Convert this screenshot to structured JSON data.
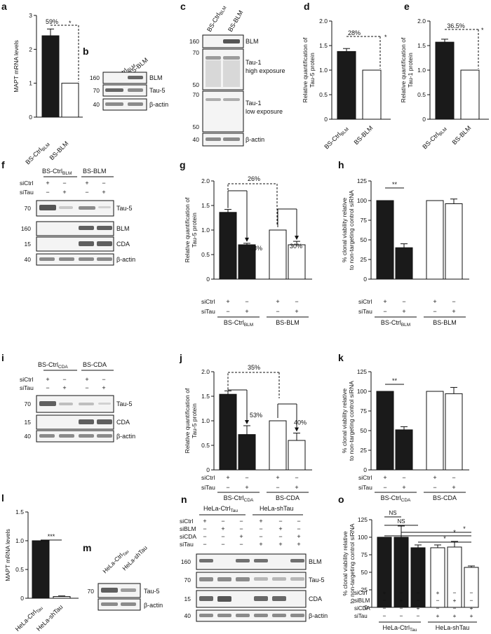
{
  "panel_letters": [
    "a",
    "b",
    "c",
    "d",
    "e",
    "f",
    "g",
    "h",
    "i",
    "j",
    "k",
    "l",
    "m",
    "n",
    "o"
  ],
  "blot_labels": {
    "b": {
      "lanes": [
        "BS-Ctrl(BLM)",
        "BS-BLM"
      ],
      "rows": [
        {
          "mw": "160",
          "name": "BLM"
        },
        {
          "mw": "70",
          "name": "Tau-5"
        },
        {
          "mw": "40",
          "name": "β-actin"
        }
      ]
    },
    "c": {
      "lanes": [
        "BS-Ctrl(BLM)",
        "BS-BLM"
      ],
      "rows": [
        {
          "mw": "160",
          "name": "BLM"
        },
        {
          "mw": "70",
          "name": "Tau-1 high exposure",
          "mw2": "50"
        },
        {
          "mw": "70",
          "name": "Tau-1 low exposure",
          "mw2": "50"
        },
        {
          "mw": "40",
          "name": "β-actin"
        }
      ]
    },
    "f": {
      "groups": [
        "BS-Ctrl(BLM)",
        "BS-BLM"
      ],
      "siCtrl": [
        "+",
        "−",
        "+",
        "−"
      ],
      "siTau": [
        "−",
        "+",
        "−",
        "+"
      ],
      "rows": [
        {
          "mw": "70",
          "name": "Tau-5"
        },
        {
          "mw": "160",
          "name": "BLM"
        },
        {
          "mw": "15",
          "name": "CDA"
        },
        {
          "mw": "40",
          "name": "β-actin"
        }
      ]
    },
    "i": {
      "groups": [
        "BS-Ctrl(CDA)",
        "BS-CDA"
      ],
      "siCtrl": [
        "+",
        "−",
        "+",
        "−"
      ],
      "siTau": [
        "−",
        "+",
        "−",
        "+"
      ],
      "rows": [
        {
          "mw": "70",
          "name": "Tau-5"
        },
        {
          "mw": "15",
          "name": "CDA"
        },
        {
          "mw": "40",
          "name": "β-actin"
        }
      ]
    },
    "m": {
      "lanes": [
        "HeLa-Ctrl(Tau)",
        "HeLa-shTau"
      ],
      "rows": [
        {
          "mw": "70",
          "name": "Tau-5"
        },
        {
          "mw": "",
          "name": "β-actin"
        }
      ]
    },
    "n": {
      "groups": [
        "HeLa-Ctrl(Tau)",
        "HeLa-shTau"
      ],
      "row_names": [
        "siCtrl",
        "siBLM",
        "siCDA",
        "siTau"
      ],
      "signs": [
        [
          "+",
          "−",
          "−",
          "−"
        ],
        [
          "−",
          "+",
          "−",
          "−"
        ],
        [
          "−",
          "−",
          "+",
          "−"
        ],
        [
          "+",
          "−",
          "−",
          "+"
        ],
        [
          "−",
          "+",
          "−",
          "+"
        ],
        [
          "−",
          "−",
          "+",
          "+"
        ]
      ],
      "rows": [
        {
          "mw": "160",
          "name": "BLM"
        },
        {
          "mw": "70",
          "name": "Tau-5"
        },
        {
          "mw": "15",
          "name": "CDA"
        },
        {
          "mw": "40",
          "name": "β-actin"
        }
      ]
    }
  },
  "chart_data": [
    {
      "panel": "a",
      "type": "bar",
      "ylabel": "MAPT mRNA levels",
      "categories": [
        "BS-Ctrl(BLM)",
        "BS-BLM"
      ],
      "values": [
        2.4,
        1.0
      ],
      "errors": [
        0.2,
        0
      ],
      "ylim": [
        0,
        3.0
      ],
      "yticks": [
        "0",
        "1",
        "2",
        "3"
      ],
      "annotation": "59%",
      "sig": "*",
      "fills": [
        "#1a1a1a",
        "#ffffff"
      ]
    },
    {
      "panel": "d",
      "type": "bar",
      "ylabel": "Relative quantification of Tau-5 protein",
      "categories": [
        "BS-Ctrl(BLM)",
        "BS-BLM"
      ],
      "values": [
        1.38,
        1.0
      ],
      "errors": [
        0.06,
        0
      ],
      "ylim": [
        0,
        2.0
      ],
      "yticks": [
        "0",
        "0.5",
        "1.0",
        "1.5",
        "2.0"
      ],
      "annotation": "28%",
      "sig": "*",
      "fills": [
        "#1a1a1a",
        "#ffffff"
      ]
    },
    {
      "panel": "e",
      "type": "bar",
      "ylabel": "Relative quantification of Tau-1 protein",
      "categories": [
        "BS-Ctrl(BLM)",
        "BS-BLM"
      ],
      "values": [
        1.57,
        1.0
      ],
      "errors": [
        0.06,
        0
      ],
      "ylim": [
        0,
        2.0
      ],
      "yticks": [
        "0",
        "0.5",
        "1.0",
        "1.5",
        "2.0"
      ],
      "annotation": "36.5%",
      "sig": "*",
      "fills": [
        "#1a1a1a",
        "#ffffff"
      ]
    },
    {
      "panel": "g",
      "type": "bar",
      "ylabel": "Relative quantification of Tau-5 protein",
      "values": [
        1.36,
        0.7,
        1.0,
        0.7
      ],
      "errors": [
        0.06,
        0.03,
        0,
        0.07
      ],
      "ylim": [
        0,
        2.0
      ],
      "yticks": [
        "0",
        "0.5",
        "1.0",
        "1.5",
        "2.0"
      ],
      "groups": [
        "BS-Ctrl(BLM)",
        "BS-BLM"
      ],
      "siCtrl": [
        "+",
        "−",
        "+",
        "−"
      ],
      "siTau": [
        "−",
        "+",
        "−",
        "+"
      ],
      "annotations": [
        "26%",
        "48%",
        "30%"
      ],
      "fills": [
        "#1a1a1a",
        "#1a1a1a",
        "#ffffff",
        "#ffffff"
      ]
    },
    {
      "panel": "h",
      "type": "bar",
      "ylabel": "% clonal viability relative to non-targeting control siRNA",
      "values": [
        100,
        40,
        100,
        96
      ],
      "errors": [
        0,
        5,
        0,
        6
      ],
      "ylim": [
        0,
        125
      ],
      "yticks": [
        "0",
        "25",
        "50",
        "75",
        "100",
        "125"
      ],
      "groups": [
        "BS-Ctrl(BLM)",
        "BS-BLM"
      ],
      "siCtrl": [
        "+",
        "−",
        "+",
        "−"
      ],
      "siTau": [
        "−",
        "+",
        "−",
        "+"
      ],
      "sig": "**",
      "fills": [
        "#1a1a1a",
        "#1a1a1a",
        "#ffffff",
        "#ffffff"
      ]
    },
    {
      "panel": "j",
      "type": "bar",
      "ylabel": "Relative quantification of Tau-5 protein",
      "values": [
        1.54,
        0.72,
        1.0,
        0.6
      ],
      "errors": [
        0.07,
        0.18,
        0,
        0.15
      ],
      "ylim": [
        0,
        2.0
      ],
      "yticks": [
        "0",
        "0.5",
        "1.0",
        "1.5",
        "2.0"
      ],
      "groups": [
        "BS-Ctrl(CDA)",
        "BS-CDA"
      ],
      "siCtrl": [
        "+",
        "−",
        "+",
        "−"
      ],
      "siTau": [
        "−",
        "+",
        "−",
        "+"
      ],
      "annotations": [
        "35%",
        "53%",
        "40%"
      ],
      "fills": [
        "#1a1a1a",
        "#1a1a1a",
        "#ffffff",
        "#ffffff"
      ]
    },
    {
      "panel": "k",
      "type": "bar",
      "ylabel": "% clonal viability relative to non-targeting control siRNA",
      "values": [
        100,
        51,
        100,
        97
      ],
      "errors": [
        0,
        4,
        0,
        8
      ],
      "ylim": [
        0,
        125
      ],
      "yticks": [
        "0",
        "25",
        "50",
        "75",
        "100",
        "125"
      ],
      "groups": [
        "BS-Ctrl(CDA)",
        "BS-CDA"
      ],
      "siCtrl": [
        "+",
        "−",
        "+",
        "−"
      ],
      "siTau": [
        "−",
        "+",
        "−",
        "+"
      ],
      "sig": "**",
      "fills": [
        "#1a1a1a",
        "#1a1a1a",
        "#ffffff",
        "#ffffff"
      ]
    },
    {
      "panel": "l",
      "type": "bar",
      "ylabel": "MAPT mRNA levels",
      "categories": [
        "HeLa-Ctrl(Tau)",
        "HeLa-shTau"
      ],
      "values": [
        1.0,
        0.03
      ],
      "errors": [
        0,
        0.01
      ],
      "ylim": [
        0,
        1.5
      ],
      "yticks": [
        "0",
        "0.5",
        "1.0",
        "1.5"
      ],
      "sig": "***",
      "fills": [
        "#1a1a1a",
        "#ffffff"
      ]
    },
    {
      "panel": "o",
      "type": "bar",
      "ylabel": "% clonal viability relative to non-targeting control siRNA",
      "values": [
        100,
        100,
        85,
        85,
        86,
        57
      ],
      "errors": [
        0,
        16,
        4,
        4,
        8,
        2
      ],
      "ylim": [
        0,
        125
      ],
      "yticks": [
        "0",
        "25",
        "50",
        "75",
        "100",
        "125"
      ],
      "groups": [
        "HeLa-Ctrl(Tau)",
        "HeLa-shTau"
      ],
      "row_names": [
        "siCtrl",
        "siBLM",
        "siCDA",
        "siTau"
      ],
      "signs": [
        [
          "+",
          "−",
          "−",
          "−"
        ],
        [
          "−",
          "+",
          "−",
          "−"
        ],
        [
          "−",
          "−",
          "+",
          "−"
        ],
        [
          "+",
          "−",
          "−",
          "+"
        ],
        [
          "−",
          "+",
          "−",
          "+"
        ],
        [
          "−",
          "−",
          "+",
          "+"
        ]
      ],
      "sig_labels": [
        "NS",
        "NS",
        "*",
        "*",
        "*"
      ],
      "fills": [
        "#1a1a1a",
        "#1a1a1a",
        "#1a1a1a",
        "#ffffff",
        "#ffffff",
        "#ffffff"
      ]
    }
  ]
}
